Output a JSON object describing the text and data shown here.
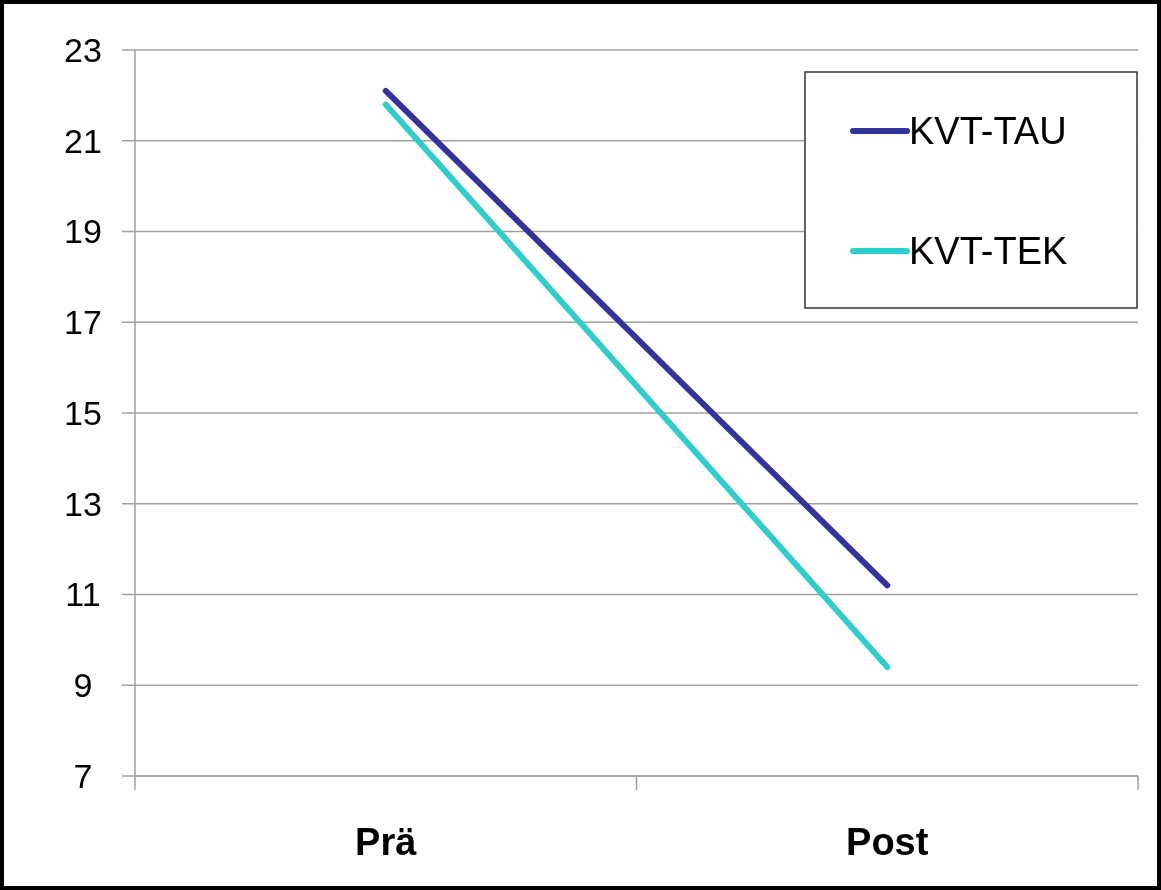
{
  "chart_data": {
    "type": "line",
    "categories": [
      "Prä",
      "Post"
    ],
    "series": [
      {
        "name": "KVT-TAU",
        "color": "#333399",
        "values": [
          22.1,
          11.2
        ]
      },
      {
        "name": "KVT-TEK",
        "color": "#33cccc",
        "values": [
          21.8,
          9.4
        ]
      }
    ],
    "ylim": [
      7,
      23
    ],
    "yticks": [
      7,
      9,
      11,
      13,
      15,
      17,
      19,
      21,
      23
    ],
    "grid": "y",
    "legend": "top right",
    "marker": "none",
    "line_style": "solid"
  }
}
